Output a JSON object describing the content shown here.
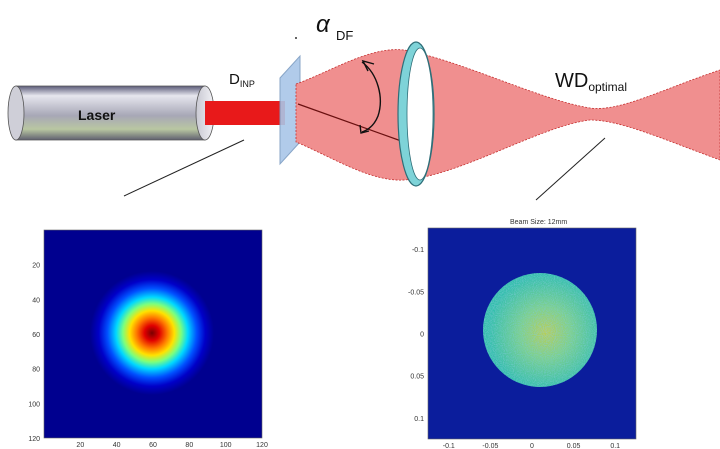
{
  "setup": {
    "laser_label": "Laser",
    "dinp_main": "D",
    "dinp_sub": "INP",
    "alpha_symbol": "α",
    "alpha_sub": "DF",
    "wd_main": "WD",
    "wd_sub": "optimal"
  },
  "left_plot": {
    "x_ticks": [
      "20",
      "40",
      "60",
      "80",
      "100",
      "120"
    ],
    "y_ticks": [
      "20",
      "40",
      "60",
      "80",
      "100",
      "120"
    ],
    "background_color": "#00008f",
    "colormap": "jet"
  },
  "right_plot": {
    "title": "Beam Size: 12mm",
    "x_ticks": [
      "-0.1",
      "-0.05",
      "0",
      "0.05",
      "0.1"
    ],
    "y_ticks": [
      "-0.1",
      "-0.05",
      "0",
      "0.05",
      "0.1"
    ],
    "background_color": "#0b1d9c",
    "disk_color": "#3fc8a4"
  },
  "colors": {
    "beam": "#f08f8f",
    "beam_core": "#e8191a",
    "lens": "#7ed3d8"
  }
}
